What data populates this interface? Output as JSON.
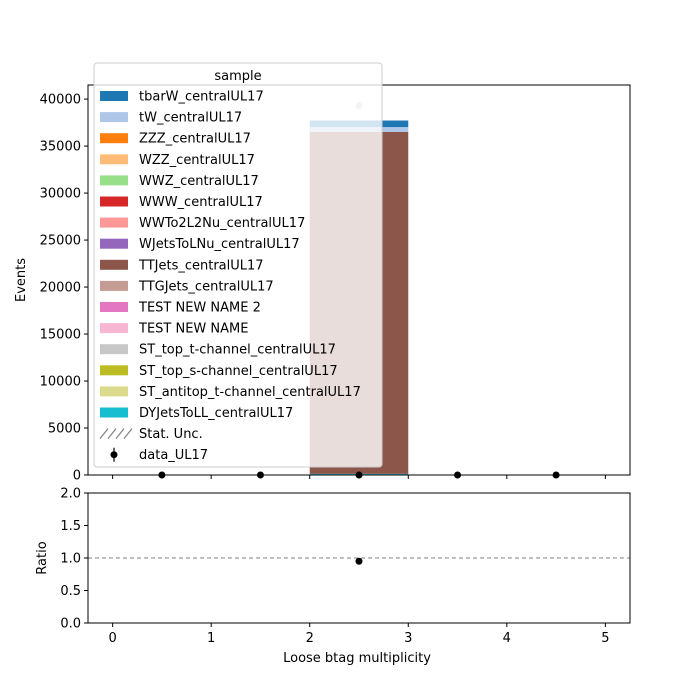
{
  "chart_data": [
    {
      "type": "bar",
      "subtype": "stacked-histogram",
      "xlabel": "",
      "ylabel": "Events",
      "xlim": [
        -0.25,
        5.25
      ],
      "ylim": [
        0,
        41500
      ],
      "x_ticks": [
        0,
        1,
        2,
        3,
        4,
        5
      ],
      "y_ticks": [
        0,
        5000,
        10000,
        15000,
        20000,
        25000,
        30000,
        35000,
        40000
      ],
      "y_tick_labels": [
        "0",
        "5000",
        "10000",
        "15000",
        "20000",
        "25000",
        "30000",
        "35000",
        "40000"
      ],
      "bin_edges": [
        0,
        1,
        2,
        3,
        4,
        5
      ],
      "legend": {
        "title": "sample",
        "placement": "upper-left",
        "entries": [
          {
            "label": "tbarW_centralUL17",
            "color": "#1f77b4",
            "kind": "patch"
          },
          {
            "label": "tW_centralUL17",
            "color": "#aec7e8",
            "kind": "patch"
          },
          {
            "label": "ZZZ_centralUL17",
            "color": "#ff7f0e",
            "kind": "patch"
          },
          {
            "label": "WZZ_centralUL17",
            "color": "#ffbb78",
            "kind": "patch"
          },
          {
            "label": "WWZ_centralUL17",
            "color": "#98df8a",
            "kind": "patch"
          },
          {
            "label": "WWW_centralUL17",
            "color": "#d62728",
            "kind": "patch"
          },
          {
            "label": "WWTo2L2Nu_centralUL17",
            "color": "#ff9896",
            "kind": "patch"
          },
          {
            "label": "WJetsToLNu_centralUL17",
            "color": "#9467bd",
            "kind": "patch"
          },
          {
            "label": "TTJets_centralUL17",
            "color": "#8c564b",
            "kind": "patch"
          },
          {
            "label": "TTGJets_centralUL17",
            "color": "#c49c94",
            "kind": "patch"
          },
          {
            "label": "TEST NEW NAME 2",
            "color": "#e377c2",
            "kind": "patch"
          },
          {
            "label": "TEST NEW NAME",
            "color": "#f7b6d2",
            "kind": "patch"
          },
          {
            "label": "ST_top_t-channel_centralUL17",
            "color": "#c7c7c7",
            "kind": "patch"
          },
          {
            "label": "ST_top_s-channel_centralUL17",
            "color": "#bcbd22",
            "kind": "patch"
          },
          {
            "label": "ST_antitop_t-channel_centralUL17",
            "color": "#dbdb8d",
            "kind": "patch"
          },
          {
            "label": "DYJetsToLL_centralUL17",
            "color": "#17becf",
            "kind": "patch"
          },
          {
            "label": "Stat. Unc.",
            "color": "#808080",
            "kind": "hatch"
          },
          {
            "label": "data_UL17",
            "color": "#000000",
            "kind": "errorbar"
          }
        ]
      },
      "stack": [
        {
          "name": "DYJetsToLL_centralUL17",
          "color": "#17becf",
          "values": [
            0,
            0,
            120,
            0,
            0
          ]
        },
        {
          "name": "TTJets_centralUL17",
          "color": "#8c564b",
          "values": [
            0,
            0,
            36400,
            0,
            0
          ]
        },
        {
          "name": "tW_centralUL17",
          "color": "#aec7e8",
          "values": [
            0,
            0,
            500,
            0,
            0
          ]
        },
        {
          "name": "tbarW_centralUL17",
          "color": "#1f77b4",
          "values": [
            0,
            0,
            700,
            0,
            0
          ]
        }
      ],
      "data_points": {
        "name": "data_UL17",
        "x": [
          0.5,
          1.5,
          2.5,
          3.5,
          4.5
        ],
        "y": [
          0,
          0,
          0,
          0,
          0
        ]
      },
      "extra_marker": {
        "x": 2.5,
        "y": 39300,
        "color": "#c8c8c8"
      }
    },
    {
      "type": "scatter",
      "xlabel": "Loose btag multiplicity",
      "ylabel": "Ratio",
      "xlim": [
        -0.25,
        5.25
      ],
      "ylim": [
        0,
        2
      ],
      "x_ticks": [
        0,
        1,
        2,
        3,
        4,
        5
      ],
      "x_tick_labels": [
        "0",
        "1",
        "2",
        "3",
        "4",
        "5"
      ],
      "y_ticks": [
        0,
        0.5,
        1,
        1.5,
        2
      ],
      "y_tick_labels": [
        "0.0",
        "0.5",
        "1.0",
        "1.5",
        "2.0"
      ],
      "reference_line": 1.0,
      "points": {
        "x": [
          2.5
        ],
        "y": [
          0.95
        ]
      }
    }
  ]
}
